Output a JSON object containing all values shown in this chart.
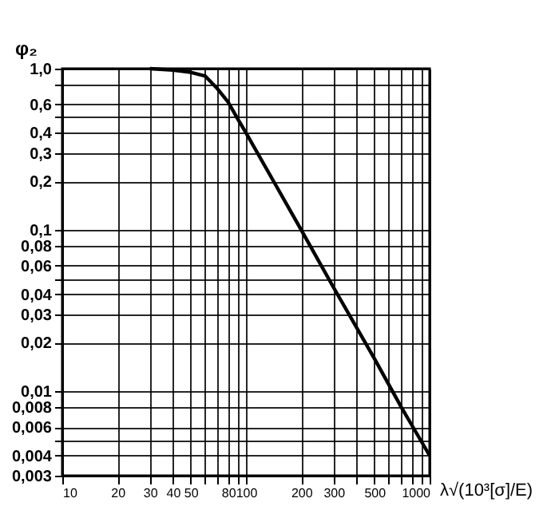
{
  "chart_data": {
    "type": "line",
    "ylabel": "φ₂",
    "xlabel": "λ√(10³[σ]/E)",
    "log": "xy",
    "grid": true,
    "marker": "none",
    "line_style": "solid",
    "xlim": [
      10,
      1000
    ],
    "ylim": [
      0.003,
      1.0
    ],
    "x": [
      30,
      40,
      50,
      60,
      70,
      80,
      90,
      100,
      150,
      200,
      300,
      500,
      700,
      1000
    ],
    "series": [
      {
        "color": "#000000",
        "values": [
          1.0,
          0.98,
          0.95,
          0.9,
          0.75,
          0.62,
          0.49,
          0.4,
          0.178,
          0.1,
          0.044,
          0.016,
          0.008,
          0.004
        ]
      }
    ],
    "xticks": [
      {
        "value": 10,
        "label": "10"
      },
      {
        "value": 20,
        "label": "20"
      },
      {
        "value": 30,
        "label": "30"
      },
      {
        "value": 40,
        "label": "40"
      },
      {
        "value": 50,
        "label": "50"
      },
      {
        "value": 60,
        "label": null
      },
      {
        "value": 70,
        "label": null
      },
      {
        "value": 80,
        "label": "80"
      },
      {
        "value": 90,
        "label": null
      },
      {
        "value": 100,
        "label": "100"
      },
      {
        "value": 200,
        "label": "200"
      },
      {
        "value": 300,
        "label": "300"
      },
      {
        "value": 400,
        "label": null
      },
      {
        "value": 500,
        "label": "500"
      },
      {
        "value": 600,
        "label": null
      },
      {
        "value": 700,
        "label": null
      },
      {
        "value": 800,
        "label": null
      },
      {
        "value": 900,
        "label": null
      },
      {
        "value": 1000,
        "label": "1000"
      }
    ],
    "yticks": [
      {
        "value": 0.003,
        "label": "0,003"
      },
      {
        "value": 0.004,
        "label": "0,004"
      },
      {
        "value": 0.005,
        "label": null
      },
      {
        "value": 0.006,
        "label": "0,006"
      },
      {
        "value": 0.008,
        "label": "0,008"
      },
      {
        "value": 0.01,
        "label": "0,01"
      },
      {
        "value": 0.02,
        "label": "0,02"
      },
      {
        "value": 0.03,
        "label": "0,03"
      },
      {
        "value": 0.04,
        "label": "0,04"
      },
      {
        "value": 0.05,
        "label": null
      },
      {
        "value": 0.06,
        "label": "0,06"
      },
      {
        "value": 0.08,
        "label": "0,08"
      },
      {
        "value": 0.1,
        "label": "0,1"
      },
      {
        "value": 0.2,
        "label": "0,2"
      },
      {
        "value": 0.3,
        "label": "0,3"
      },
      {
        "value": 0.4,
        "label": "0,4"
      },
      {
        "value": 0.5,
        "label": null
      },
      {
        "value": 0.6,
        "label": "0,6"
      },
      {
        "value": 0.8,
        "label": null
      },
      {
        "value": 1.0,
        "label": "1,0"
      }
    ]
  }
}
